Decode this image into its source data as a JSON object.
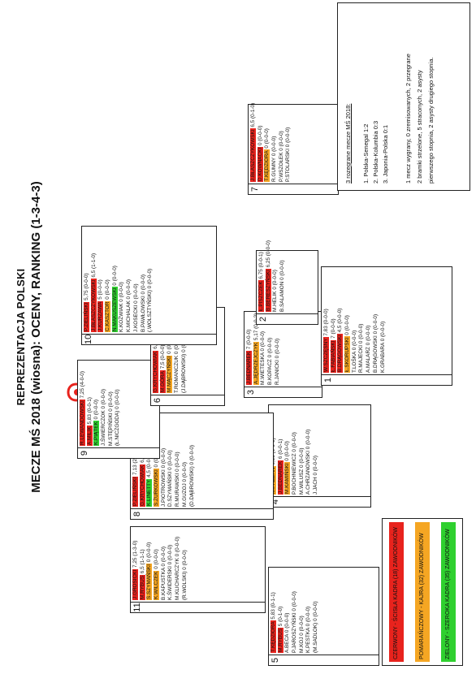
{
  "title_line1": "REPREZENTACJA POLSKI",
  "title_line2": "MECZE MŚ 2018 (wiosna): OCENY, RANKING (1-3-4-3)",
  "logo_text": "PZPN",
  "colors": {
    "red": "#e8231d",
    "orange": "#f5a623",
    "green": "#2fd02f"
  },
  "boxes": [
    {
      "num": "5",
      "rows": [
        {
          "name": "T.KĘDZIORA",
          "stat": "5,83 (0-1-1)",
          "color": "red"
        },
        {
          "name": "M.RYBUS",
          "stat": "5 (0-1-0)",
          "color": "red"
        },
        {
          "name": "A.BECA",
          "stat": "0 (0-0-0)",
          "color": ""
        },
        {
          "name": "P.JAROSZYŃSKI",
          "stat": "0 (0-0-0)",
          "color": ""
        },
        {
          "name": "M.KOJ",
          "stat": "0 (0-0-0)",
          "color": ""
        },
        {
          "name": "K.PESTKA",
          "stat": "0 (0-0-0)",
          "color": ""
        },
        {
          "name": "(M.SADLOK)",
          "stat": "0 (0-0-0)",
          "color": ""
        }
      ]
    },
    {
      "num": "11",
      "rows": [
        {
          "name": "J.GROSICKI",
          "stat": "7,25 (1-3-0)",
          "color": "red"
        },
        {
          "name": "M.RYBUS",
          "stat": "6,5 (1-1-1)",
          "color": "red"
        },
        {
          "name": "S.SZYMAŃSKI",
          "stat": "0 (0-0-0)",
          "color": "orange"
        },
        {
          "name": "K.WILCZEK",
          "stat": "0 (0-0-0)",
          "color": "orange"
        },
        {
          "name": "B.KAPUSTKA",
          "stat": "0 (0-0-0)",
          "color": ""
        },
        {
          "name": "K.ŚWIDERSKI",
          "stat": "0 (0-0-0)",
          "color": ""
        },
        {
          "name": "M.KLICHARCZYK",
          "stat": "0 (0-0-0)",
          "color": ""
        },
        {
          "name": "(R.WOLSKI)",
          "stat": "0 (0-0-0)",
          "color": ""
        }
      ]
    },
    {
      "num": "4",
      "rows": [
        {
          "name": "M.PAZDAN",
          "stat": "6,33 (0-0-0)",
          "color": "orange"
        },
        {
          "name": "J.BEDNAREK",
          "stat": "6 (0-0-1)",
          "color": "red"
        },
        {
          "name": "M.KAMIŃSKI",
          "stat": "0 (0-0-0)",
          "color": "orange"
        },
        {
          "name": "P.BOCHNIEWICZ",
          "stat": "0 (0-0-0)",
          "color": ""
        },
        {
          "name": "M.WILUSZ",
          "stat": "0 (0-0-0)",
          "color": ""
        },
        {
          "name": "A.CHRZANOWSKI",
          "stat": "0 (0-0-0)",
          "color": ""
        },
        {
          "name": "J.JACH",
          "stat": "0 (0-0-0)",
          "color": ""
        }
      ]
    },
    {
      "num": "8",
      "rows": [
        {
          "name": "P.ZIELIŃSKI",
          "stat": "7,13 (2-0-0)",
          "color": "red"
        },
        {
          "name": "G.KRYCHOWIAK",
          "stat": "6,17 (0-0-0)",
          "color": "red"
        },
        {
          "name": "K.LINETTY",
          "stat": "4,5 (0-0-0)",
          "color": "green"
        },
        {
          "name": "S.ŻURKOWSKI",
          "stat": "0 (0-0-0)",
          "color": "orange"
        },
        {
          "name": "J.PIOTROWSKI",
          "stat": "0 (0-0-0)",
          "color": ""
        },
        {
          "name": "D.SZYMAŃSKI",
          "stat": "0 (0-0-0)",
          "color": ""
        },
        {
          "name": "R.MURAWSKI",
          "stat": "0 (0-0-0)",
          "color": ""
        },
        {
          "name": "M.GUZOJ",
          "stat": "0 (0-0-0)",
          "color": ""
        },
        {
          "name": "(D.DĄBROWSKI)",
          "stat": "0 (0-0-0)",
          "color": ""
        }
      ]
    },
    {
      "num": "9",
      "rows": [
        {
          "name": "R.LEWANDOWSKI",
          "stat": "7,25 (4-0-0)",
          "color": "red"
        },
        {
          "name": "A.MILIK",
          "stat": "5,83 (0-0-1)",
          "color": "red"
        },
        {
          "name": "K.PIĄTEK",
          "stat": "0 (0-0-0)",
          "color": "green"
        },
        {
          "name": "J.ŚWIERCZOK",
          "stat": "0 (0-0-0)",
          "color": ""
        },
        {
          "name": "M.STĘPIŃSKI",
          "stat": "0 (0-0-0)",
          "color": ""
        },
        {
          "name": "(Ł.NICZGODA)",
          "stat": "0 (0-0-0)",
          "color": ""
        }
      ]
    },
    {
      "num": "6",
      "rows": [
        {
          "name": "G.KRYCHOWIAK",
          "stat": "6,83 (0-1-2)",
          "color": "red"
        },
        {
          "name": "M.GÓRA",
          "stat": "7,5 (0-0-0)",
          "color": "red"
        },
        {
          "name": "M.MĄCZYŃSKI",
          "stat": "0 (0-0-0)",
          "color": "orange"
        },
        {
          "name": "T.ROMANCZUK",
          "stat": "0 (0-0-0)",
          "color": ""
        },
        {
          "name": "(J.DĄBROWSKI)",
          "stat": "0 (0-0-0)",
          "color": ""
        }
      ]
    },
    {
      "num": "3",
      "rows": [
        {
          "name": "J.BEDNAREK",
          "stat": "7 (0-0-0)",
          "color": "red"
        },
        {
          "name": "A.JĘDRZEJCZYK",
          "stat": "5,17 (0-0-2)",
          "color": "orange"
        },
        {
          "name": "M.WIETESKA",
          "stat": "0 (0-0-0)",
          "color": ""
        },
        {
          "name": "B.KOPACZ",
          "stat": "0 (0-0-0)",
          "color": ""
        },
        {
          "name": "R.JANICKI",
          "stat": "0 (0-0-0)",
          "color": ""
        }
      ]
    },
    {
      "num": "1",
      "rows": [
        {
          "name": "W.SZCZĘSNY",
          "stat": "7,83 (0-0-0)",
          "color": "red"
        },
        {
          "name": "Ł.FABIAŃSKI",
          "stat": "7 (0-0-0)",
          "color": "red"
        },
        {
          "name": "B.DRĄGOWSKI",
          "stat": "4,5 (0-0-0)",
          "color": "red"
        },
        {
          "name": "Ł.SKORUPSKI",
          "stat": "0 (0-0-0)",
          "color": "orange"
        },
        {
          "name": "T.LOŚKA",
          "stat": "0 (0-0-0)",
          "color": ""
        },
        {
          "name": "R.MAJECKI",
          "stat": "0 (0-0-0)",
          "color": ""
        },
        {
          "name": "A.MALARZ",
          "stat": "0 (0-0-0)",
          "color": ""
        },
        {
          "name": "B.DRĄGOWSKI",
          "stat": "0 (0-0-0)",
          "color": ""
        },
        {
          "name": "K.GRABARA",
          "stat": "0 (0-0-0)",
          "color": ""
        }
      ]
    },
    {
      "num": "10",
      "rows": [
        {
          "name": "P.ZIELIŃSKI",
          "stat": "5,75 (0-0-0)",
          "color": "red"
        },
        {
          "name": "J.BŁASZCZYKOWSKI",
          "stat": "6,5 (1-1-0)",
          "color": "red"
        },
        {
          "name": "J.KURZAWA",
          "stat": "5 (0-0-0)",
          "color": "red"
        },
        {
          "name": "C.KASZTOR",
          "stat": "0 (0-0-0)",
          "color": "orange"
        },
        {
          "name": "N.MAKUSZEWSKI",
          "stat": "0 (0-0-0)",
          "color": "green"
        },
        {
          "name": "K.KOŻWIAK",
          "stat": "0 (0-0-0)",
          "color": ""
        },
        {
          "name": "K.MICHALAK",
          "stat": "0 (0-0-0)",
          "color": ""
        },
        {
          "name": "J.KOSECKI",
          "stat": "0 (0-0-0)",
          "color": ""
        },
        {
          "name": "B.PAWŁOWSKI",
          "stat": "0 (0-0-0)",
          "color": ""
        },
        {
          "name": "(.WOLSZTYŃSKI)",
          "stat": "0 (0-0-0)",
          "color": ""
        }
      ]
    },
    {
      "num": "2",
      "rows": [
        {
          "name": "Ł.PISZCZEK",
          "stat": "6,75 (0-0-1)",
          "color": "red"
        },
        {
          "name": "B.BERESZYŃSKI",
          "stat": "6,25 (0-0-0)",
          "color": "red"
        },
        {
          "name": "M.HELIK",
          "stat": "0 (0-0-0)",
          "color": ""
        },
        {
          "name": "B.SALAMON",
          "stat": "0 (0-0-0)",
          "color": ""
        }
      ]
    },
    {
      "num": "7",
      "rows": [
        {
          "name": "J.BŁASZCZYKOWSKI",
          "stat": "6,5 (0-1-0)",
          "color": "red"
        },
        {
          "name": "D.KOWNACKI",
          "stat": "0 (0-0-0)",
          "color": "red"
        },
        {
          "name": "T.KĘDZIORA",
          "stat": "0 (0-0-0)",
          "color": "orange"
        },
        {
          "name": "R.GUMNY",
          "stat": "0 (0-0-0)",
          "color": ""
        },
        {
          "name": "P.WSZOŁEK",
          "stat": "0 (0-0-0)",
          "color": ""
        },
        {
          "name": "P.STOLARSKI",
          "stat": "0 (0-0-0)",
          "color": ""
        }
      ]
    }
  ],
  "info": {
    "header": "3 rozegrane mecze MŚ 2018:",
    "lines": [
      "1. Polska-Senegal 1:2",
      "2. Polska-Kolumbia 0:3",
      "3. Japonia-Polska 0:1",
      "",
      "1 mecz wygrany, 0 zremisowanych, 2 przegrane",
      "2 bramki strzelone, 5 straconych, 2 asysty",
      "pierwszego stopnia, 2 asysty drugiego stopnia."
    ]
  },
  "legend": [
    {
      "text": "CZERWONY - ŚCISŁA KADRA (18) ZAWODNIKÓW",
      "color": "red"
    },
    {
      "text": "POMARAŃCZOWY - KAJRA (32) ZAWODNIKÓW",
      "color": "orange"
    },
    {
      "text": "ZIELONY - SZEROKA KADRA (35) ZAWODNIKÓW",
      "color": "green"
    }
  ]
}
